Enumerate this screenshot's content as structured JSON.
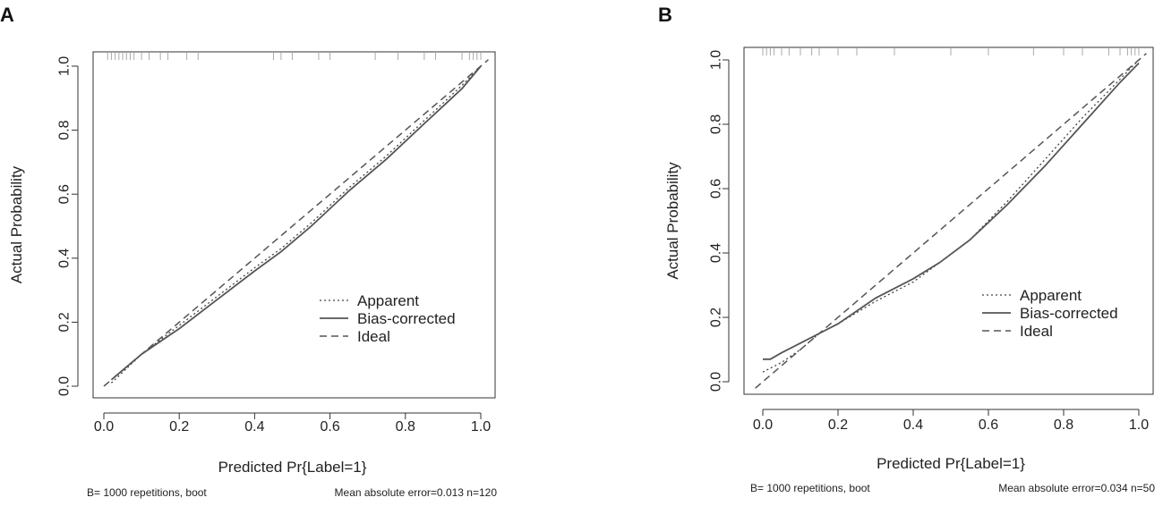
{
  "chart_data": [
    {
      "panel_label": "A",
      "type": "line",
      "xlabel": "Predicted Pr{Label=1}",
      "ylabel": "Actual Probability",
      "xlim": [
        0,
        1
      ],
      "ylim": [
        0,
        1
      ],
      "x_ticks": [
        "0.0",
        "0.2",
        "0.4",
        "0.6",
        "0.8",
        "1.0"
      ],
      "y_ticks": [
        "0.0",
        "0.2",
        "0.4",
        "0.6",
        "0.8",
        "1.0"
      ],
      "legend_position": "right",
      "footer_left": "B= 1000 repetitions, boot",
      "footer_right": "Mean absolute error=0.013 n=120",
      "series": [
        {
          "name": "Apparent",
          "style": "dotted",
          "x": [
            0.02,
            0.1,
            0.2,
            0.3,
            0.4,
            0.47,
            0.55,
            0.65,
            0.75,
            0.85,
            0.95,
            1.0
          ],
          "y": [
            0.01,
            0.1,
            0.19,
            0.28,
            0.37,
            0.43,
            0.51,
            0.62,
            0.72,
            0.83,
            0.94,
            1.0
          ]
        },
        {
          "name": "Bias-corrected",
          "style": "solid",
          "x": [
            0.02,
            0.1,
            0.2,
            0.3,
            0.4,
            0.47,
            0.55,
            0.65,
            0.75,
            0.85,
            0.95,
            1.0
          ],
          "y": [
            0.02,
            0.1,
            0.18,
            0.27,
            0.36,
            0.42,
            0.5,
            0.61,
            0.71,
            0.82,
            0.93,
            1.0
          ]
        },
        {
          "name": "Ideal",
          "style": "dashed",
          "x": [
            0,
            1.02
          ],
          "y": [
            0,
            1.02
          ]
        }
      ],
      "rug_top": [
        0.01,
        0.02,
        0.03,
        0.04,
        0.05,
        0.06,
        0.07,
        0.08,
        0.1,
        0.12,
        0.15,
        0.17,
        0.22,
        0.25,
        0.45,
        0.47,
        0.5,
        0.57,
        0.6,
        0.72,
        0.78,
        0.85,
        0.88,
        0.95,
        0.97,
        0.98,
        0.99,
        1.0
      ]
    },
    {
      "panel_label": "B",
      "type": "line",
      "xlabel": "Predicted Pr{Label=1}",
      "ylabel": "Actual Probability",
      "xlim": [
        0,
        1
      ],
      "ylim": [
        0,
        1
      ],
      "x_ticks": [
        "0.0",
        "0.2",
        "0.4",
        "0.6",
        "0.8",
        "1.0"
      ],
      "y_ticks": [
        "0.0",
        "0.2",
        "0.4",
        "0.6",
        "0.8",
        "1.0"
      ],
      "legend_position": "right",
      "footer_left": "B= 1000 repetitions, boot",
      "footer_right": "Mean absolute error=0.034 n=50",
      "series": [
        {
          "name": "Apparent",
          "style": "dotted",
          "x": [
            0.0,
            0.05,
            0.1,
            0.15,
            0.2,
            0.3,
            0.4,
            0.47,
            0.55,
            0.65,
            0.75,
            0.85,
            0.95,
            1.0
          ],
          "y": [
            0.03,
            0.06,
            0.1,
            0.15,
            0.18,
            0.25,
            0.31,
            0.37,
            0.44,
            0.56,
            0.69,
            0.82,
            0.94,
            1.0
          ]
        },
        {
          "name": "Bias-corrected",
          "style": "solid",
          "x": [
            0.0,
            0.02,
            0.05,
            0.1,
            0.15,
            0.2,
            0.3,
            0.4,
            0.47,
            0.55,
            0.65,
            0.75,
            0.85,
            0.95,
            1.0
          ],
          "y": [
            0.07,
            0.07,
            0.09,
            0.12,
            0.15,
            0.18,
            0.26,
            0.32,
            0.37,
            0.44,
            0.55,
            0.67,
            0.8,
            0.93,
            0.99
          ]
        },
        {
          "name": "Ideal",
          "style": "dashed",
          "x": [
            -0.02,
            1.02
          ],
          "y": [
            -0.02,
            1.02
          ]
        }
      ],
      "rug_top": [
        0.0,
        0.01,
        0.02,
        0.03,
        0.05,
        0.07,
        0.1,
        0.13,
        0.15,
        0.2,
        0.25,
        0.35,
        0.5,
        0.6,
        0.72,
        0.8,
        0.85,
        0.92,
        0.95,
        0.97,
        0.98,
        0.99,
        1.0
      ]
    }
  ]
}
